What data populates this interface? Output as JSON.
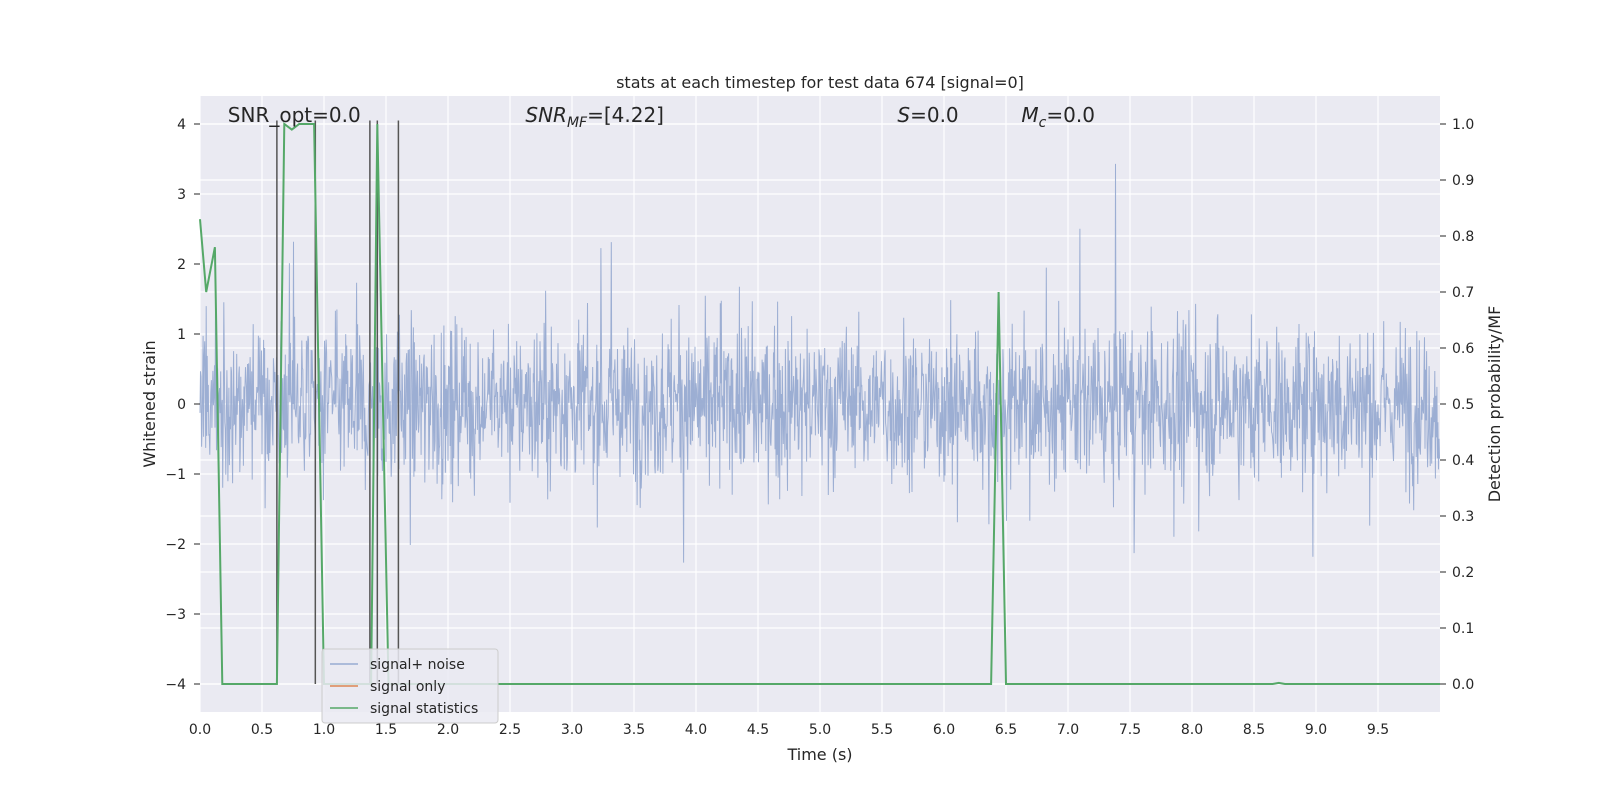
{
  "chart_data": {
    "type": "line",
    "title": "stats at each timestep for test data 674 [signal=0]",
    "xlabel": "Time (s)",
    "ylabel": "Whitened strain",
    "y2label": "Detection probability/MF",
    "xlim": [
      0,
      10
    ],
    "ylim": [
      -4.4,
      4.4
    ],
    "y2lim": [
      -0.05,
      1.05
    ],
    "x_ticks": [
      "0.0",
      "0.5",
      "1.0",
      "1.5",
      "2.0",
      "2.5",
      "3.0",
      "3.5",
      "4.0",
      "4.5",
      "5.0",
      "5.5",
      "6.0",
      "6.5",
      "7.0",
      "7.5",
      "8.0",
      "8.5",
      "9.0",
      "9.5"
    ],
    "y_ticks": [
      "4",
      "3",
      "2",
      "1",
      "0",
      "−1",
      "−2",
      "−3",
      "−4"
    ],
    "y2_ticks": [
      "1.0",
      "0.9",
      "0.8",
      "0.7",
      "0.6",
      "0.5",
      "0.4",
      "0.3",
      "0.2",
      "0.1",
      "0.0"
    ],
    "grid": true,
    "legend_position": "lower-left",
    "colors": {
      "plot_bg": "#eaeaf2",
      "noise": "#98abd1",
      "signal_only": "#dd8452",
      "stats": "#55a868",
      "marker": "#555555",
      "grid": "#ffffff"
    },
    "annotations": [
      {
        "text": "SNR_opt=0.0",
        "kind": "plain",
        "x": 0.2
      },
      {
        "text": "SNR",
        "sub": "MF",
        "rest": "=[4.22]",
        "kind": "math",
        "x": 2.6
      },
      {
        "text": "S",
        "rest": "=0.0",
        "kind": "math",
        "x": 5.6
      },
      {
        "text": "M",
        "sub": "c",
        "rest": "=0.0",
        "kind": "math",
        "x": 6.6
      }
    ],
    "series": [
      {
        "name": "signal+ noise",
        "kind": "noise",
        "amplitude_typical": [
          -2.0,
          2.0
        ],
        "amplitude_peak": [
          -4.0,
          4.0
        ]
      },
      {
        "name": "signal only",
        "kind": "flat",
        "values": []
      },
      {
        "name": "signal statistics",
        "axis": "right",
        "x": [
          0.0,
          0.05,
          0.12,
          0.18,
          0.62,
          0.68,
          0.74,
          0.8,
          0.92,
          1.0,
          1.38,
          1.43,
          1.52,
          2.5,
          6.38,
          6.44,
          6.5,
          8.65,
          8.7,
          8.75,
          10.0
        ],
        "values": [
          0.83,
          0.7,
          0.78,
          0.0,
          0.0,
          1.0,
          0.99,
          1.0,
          1.0,
          0.0,
          0.0,
          1.0,
          0.0,
          0.0,
          0.0,
          0.7,
          0.0,
          0.0,
          0.002,
          0.0,
          0.0
        ]
      }
    ],
    "vlines": [
      0.62,
      0.93,
      1.37,
      1.43,
      1.6
    ]
  }
}
